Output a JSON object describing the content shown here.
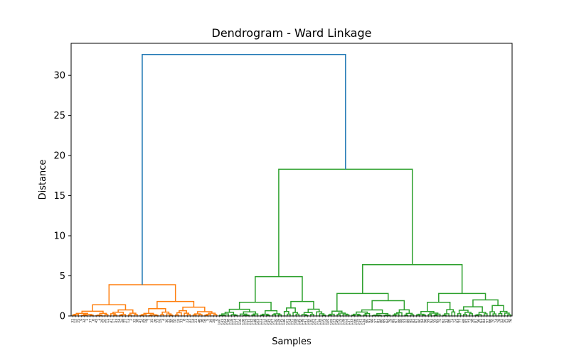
{
  "chart_data": {
    "type": "dendrogram",
    "title": "Dendrogram - Ward Linkage",
    "xlabel": "Samples",
    "ylabel": "Distance",
    "ylim": [
      0,
      34
    ],
    "yticks": [
      0,
      5,
      10,
      15,
      20,
      25,
      30
    ],
    "grid": false,
    "colors": {
      "root": "#1f77b4",
      "cluster_1": "#ff7f0e",
      "cluster_2": "#2ca02c",
      "axes": "#000000"
    },
    "n_samples": 150,
    "root_merge_height": 32.6,
    "links": [
      {
        "name": "root",
        "height": 32.6,
        "color": "root",
        "left": {
          "cluster": "cluster_1",
          "height": 3.9
        },
        "right": {
          "cluster": "cluster_2",
          "height": 18.3
        }
      },
      {
        "name": "cluster-1-top",
        "height": 3.9,
        "color": "cluster_1",
        "left": {
          "height": 1.4
        },
        "right": {
          "height": 1.8
        }
      },
      {
        "name": "cluster-2-top",
        "height": 18.3,
        "color": "cluster_2",
        "left": {
          "height": 4.9
        },
        "right": {
          "height": 6.4
        }
      },
      {
        "name": "cluster-2a",
        "height": 4.9,
        "color": "cluster_2",
        "left": {
          "height": 1.7
        },
        "right": {
          "height": 1.8
        }
      },
      {
        "name": "cluster-2b",
        "height": 6.4,
        "color": "cluster_2",
        "left": {
          "height": 2.8
        },
        "right": {
          "height": 2.8
        }
      },
      {
        "name": "cluster-2b-left",
        "height": 2.8,
        "color": "cluster_2",
        "left": {
          "height": 0.6
        },
        "right": {
          "height": 1.9
        }
      },
      {
        "name": "cluster-2b-right",
        "height": 2.8,
        "color": "cluster_2",
        "left": {
          "height": 1.7
        },
        "right": {
          "height": 2.0
        }
      }
    ],
    "leaf_labels": [
      "31",
      "12",
      "25",
      "9",
      "34",
      "1",
      "37",
      "6",
      "45",
      "3",
      "29",
      "20",
      "11",
      "47",
      "17",
      "43",
      "24",
      "48",
      "27",
      "13",
      "2",
      "32",
      "38",
      "41",
      "49",
      "18",
      "7",
      "35",
      "26",
      "22",
      "15",
      "4",
      "30",
      "44",
      "40",
      "10",
      "19",
      "33",
      "8",
      "23",
      "42",
      "14",
      "21",
      "46",
      "36",
      "16",
      "5",
      "39",
      "28",
      "0",
      "100",
      "143",
      "104",
      "138",
      "118",
      "113",
      "127",
      "116",
      "126",
      "115",
      "131",
      "132",
      "148",
      "103",
      "121",
      "111",
      "140",
      "142",
      "107",
      "120",
      "129",
      "135",
      "146",
      "101",
      "124",
      "122",
      "108",
      "145",
      "136",
      "147",
      "144",
      "130",
      "102",
      "117",
      "139",
      "110",
      "114",
      "105",
      "109",
      "123",
      "149",
      "119",
      "128",
      "112",
      "137",
      "133",
      "106",
      "125",
      "141",
      "134",
      "60",
      "93",
      "98",
      "57",
      "81",
      "80",
      "69",
      "64",
      "79",
      "85",
      "67",
      "88",
      "99",
      "53",
      "89",
      "95",
      "82",
      "61",
      "90",
      "94",
      "96",
      "59",
      "92",
      "55",
      "65",
      "75",
      "62",
      "51",
      "86",
      "71",
      "72",
      "83",
      "77",
      "68",
      "91",
      "73",
      "58",
      "87",
      "56",
      "63",
      "84",
      "97",
      "66",
      "70",
      "74",
      "78",
      "52",
      "50",
      "54",
      "76"
    ]
  }
}
